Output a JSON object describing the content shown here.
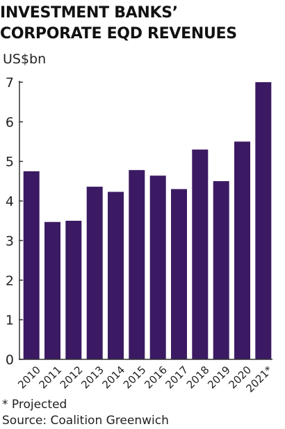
{
  "chart_data": {
    "type": "bar",
    "title_lines": [
      "INVESTMENT BANKS’",
      "CORPORATE EQD REVENUES"
    ],
    "ylabel": "US$bn",
    "categories": [
      "2010",
      "2011",
      "2012",
      "2013",
      "2014",
      "2015",
      "2016",
      "2017",
      "2018",
      "2019",
      "2020",
      "2021*"
    ],
    "values": [
      4.75,
      3.47,
      3.5,
      4.36,
      4.23,
      4.78,
      4.64,
      4.3,
      5.3,
      4.5,
      5.5,
      7.0
    ],
    "yticks": [
      0,
      1,
      2,
      3,
      4,
      5,
      6,
      7
    ],
    "ylim": [
      0,
      7
    ],
    "grid": false,
    "bar_color": "#3b1a63",
    "axis_color": "#333333"
  },
  "footnote": "* Projected",
  "source": "Source: Coalition Greenwich"
}
